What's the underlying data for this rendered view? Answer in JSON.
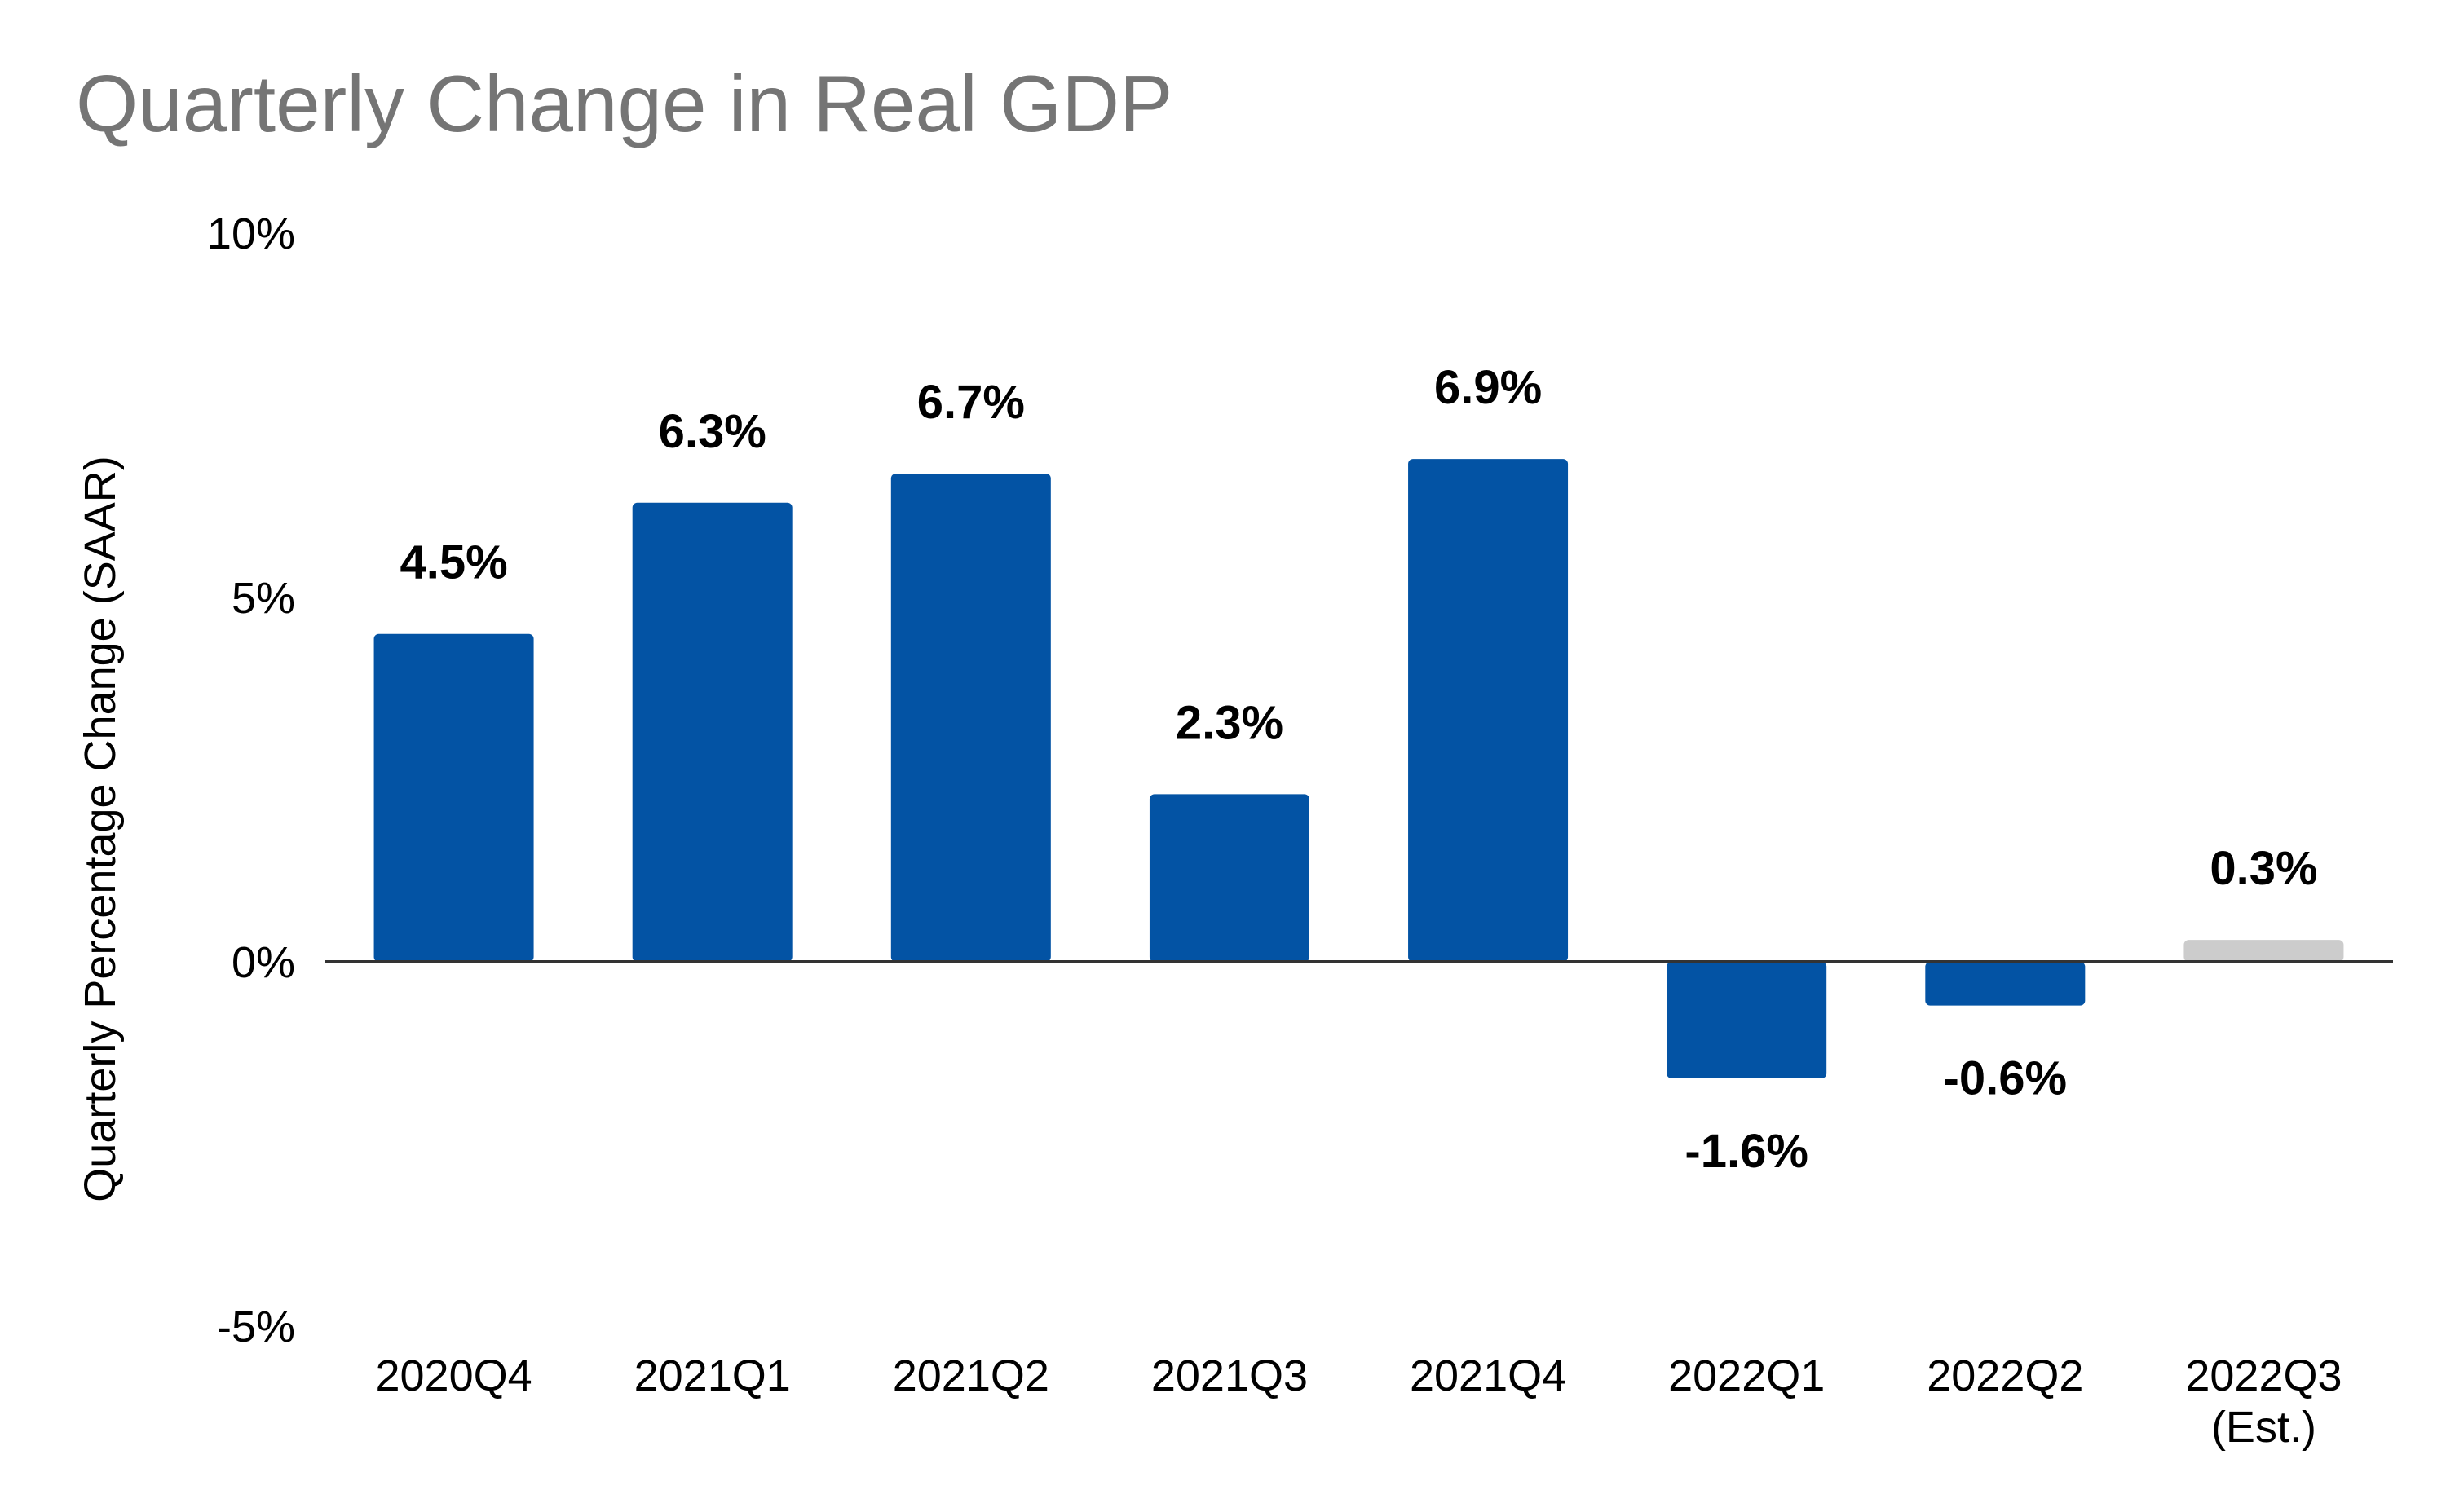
{
  "chart_data": {
    "type": "bar",
    "title": "Quarterly Change in Real GDP",
    "ylabel": "Quarterly Percentage Change (SAAR)",
    "xlabel": "",
    "ylim": [
      -5,
      10
    ],
    "yticks": [
      10,
      5,
      0,
      -5
    ],
    "ytick_labels": [
      "10%",
      "5%",
      "0%",
      "-5%"
    ],
    "grid": false,
    "categories": [
      [
        "2020Q4"
      ],
      [
        "2021Q1"
      ],
      [
        "2021Q2"
      ],
      [
        "2021Q3"
      ],
      [
        "2021Q4"
      ],
      [
        "2022Q1"
      ],
      [
        "2022Q2"
      ],
      [
        "2022Q3",
        "(Est.)"
      ]
    ],
    "values": [
      4.5,
      6.3,
      6.7,
      2.3,
      6.9,
      -1.6,
      -0.6,
      0.3
    ],
    "data_labels": [
      "4.5%",
      "6.3%",
      "6.7%",
      "2.3%",
      "6.9%",
      "-1.6%",
      "-0.6%",
      "0.3%"
    ],
    "bar_colors": [
      "#0353a4",
      "#0353a4",
      "#0353a4",
      "#0353a4",
      "#0353a4",
      "#0353a4",
      "#0353a4",
      "#cccccc"
    ],
    "estimate_note": "2022Q3 is an estimate",
    "colors": {
      "actual": "#0353a4",
      "estimate": "#cccccc",
      "title": "#757575",
      "text": "#000000",
      "axis": "#333333"
    }
  }
}
